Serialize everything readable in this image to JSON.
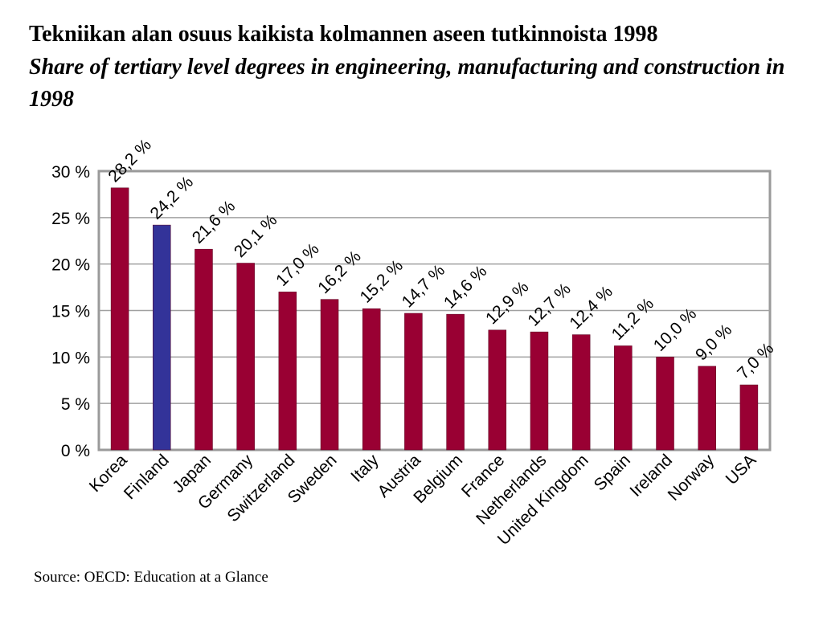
{
  "title_fi": "Tekniikan alan osuus kaikista kolmannen aseen tutkinnoista 1998",
  "title_en": "Share of tertiary level degrees in engineering, manufacturing and construction in 1998",
  "source": "Source: OECD: Education at a Glance",
  "chart_data": {
    "type": "bar",
    "title": "Tekniikan alan osuus kaikista kolmannen aseen tutkinnoista 1998 / Share of tertiary level degrees in engineering, manufacturing and construction in 1998",
    "categories": [
      "Korea",
      "Finland",
      "Japan",
      "Germany",
      "Switzerland",
      "Sweden",
      "Italy",
      "Austria",
      "Belgium",
      "France",
      "Netherlands",
      "United Kingdom",
      "Spain",
      "Ireland",
      "Norway",
      "USA"
    ],
    "values": [
      28.2,
      24.2,
      21.6,
      20.1,
      17.0,
      16.2,
      15.2,
      14.7,
      14.6,
      12.9,
      12.7,
      12.4,
      11.2,
      10.0,
      9.0,
      7.0
    ],
    "value_labels": [
      "28,2 %",
      "24,2 %",
      "21,6 %",
      "20,1 %",
      "17,0 %",
      "16,2 %",
      "15,2 %",
      "14,7 %",
      "14,6 %",
      "12,9 %",
      "12,7 %",
      "12,4 %",
      "11,2 %",
      "10,0 %",
      "9,0 %",
      "7,0 %"
    ],
    "yticks": [
      0,
      5,
      10,
      15,
      20,
      25,
      30
    ],
    "ytick_labels": [
      "0 %",
      "5 %",
      "10 %",
      "15 %",
      "20 %",
      "25 %",
      "30 %"
    ],
    "ylim": [
      0,
      30
    ],
    "xlabel": "",
    "ylabel": "",
    "grid": true,
    "colors": {
      "default": "#990033",
      "highlight": "#333399",
      "highlight_category": "Finland",
      "grid": "#a0a0a0",
      "frame": "#9a9a9a"
    }
  }
}
